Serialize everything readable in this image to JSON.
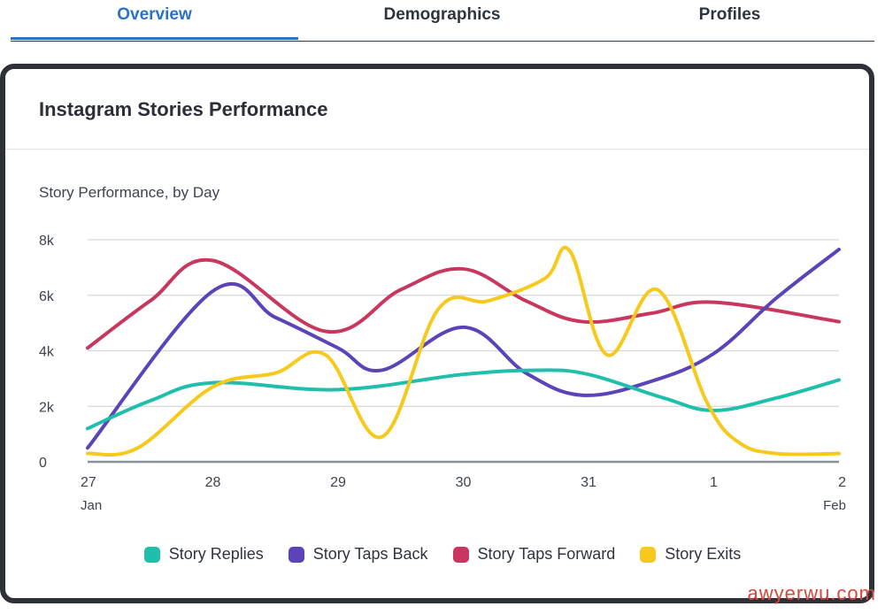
{
  "tabs": [
    {
      "label": "Overview",
      "active": true
    },
    {
      "label": "Demographics",
      "active": false
    },
    {
      "label": "Profiles",
      "active": false
    }
  ],
  "colors": {
    "accent": "#2a73c4"
  },
  "card": {
    "title": "Instagram Stories Performance"
  },
  "watermark": "awyerwu.com",
  "chart_data": {
    "type": "line",
    "title": "Story Performance, by Day",
    "xlabel": "",
    "ylabel": "",
    "ylim": [
      0,
      8000
    ],
    "yticks": [
      "0",
      "2k",
      "4k",
      "6k",
      "8k"
    ],
    "xticks": [
      {
        "label": "27",
        "sub": "Jan"
      },
      {
        "label": "28",
        "sub": ""
      },
      {
        "label": "29",
        "sub": ""
      },
      {
        "label": "30",
        "sub": ""
      },
      {
        "label": "31",
        "sub": ""
      },
      {
        "label": "1",
        "sub": ""
      },
      {
        "label": "2",
        "sub": "Feb"
      }
    ],
    "grid": true,
    "legend": "bottom",
    "series": [
      {
        "name": "Story Replies",
        "color": "#1fbfac",
        "x": [
          0,
          0.5,
          1,
          2,
          3,
          3.6,
          4,
          4.6,
          5,
          5.5,
          6
        ],
        "y": [
          1200,
          2200,
          2850,
          2600,
          3150,
          3300,
          3150,
          2300,
          1850,
          2300,
          2950
        ]
      },
      {
        "name": "Story Taps Back",
        "color": "#5b43b8",
        "x": [
          0,
          1,
          1.5,
          2,
          2.35,
          3,
          3.5,
          3.95,
          4.5,
          5,
          5.5,
          6
        ],
        "y": [
          500,
          6150,
          5200,
          4100,
          3300,
          4850,
          3200,
          2400,
          2900,
          3900,
          5900,
          7650
        ]
      },
      {
        "name": "Story Taps Forward",
        "color": "#c8375e",
        "x": [
          0,
          0.5,
          1,
          1.9,
          2.5,
          3,
          3.5,
          3.95,
          4.5,
          5,
          6
        ],
        "y": [
          4100,
          5800,
          7250,
          4700,
          6200,
          6950,
          5800,
          5050,
          5350,
          5750,
          5050
        ]
      },
      {
        "name": "Story Exits",
        "color": "#f7c91c",
        "x": [
          0,
          0.4,
          1,
          1.5,
          1.9,
          2.35,
          2.8,
          3.2,
          3.65,
          3.85,
          4.15,
          4.55,
          4.95,
          5.2,
          5.5,
          6
        ],
        "y": [
          300,
          500,
          2700,
          3200,
          3850,
          900,
          5500,
          5800,
          6600,
          7600,
          3850,
          6200,
          2100,
          700,
          300,
          300
        ]
      }
    ]
  }
}
